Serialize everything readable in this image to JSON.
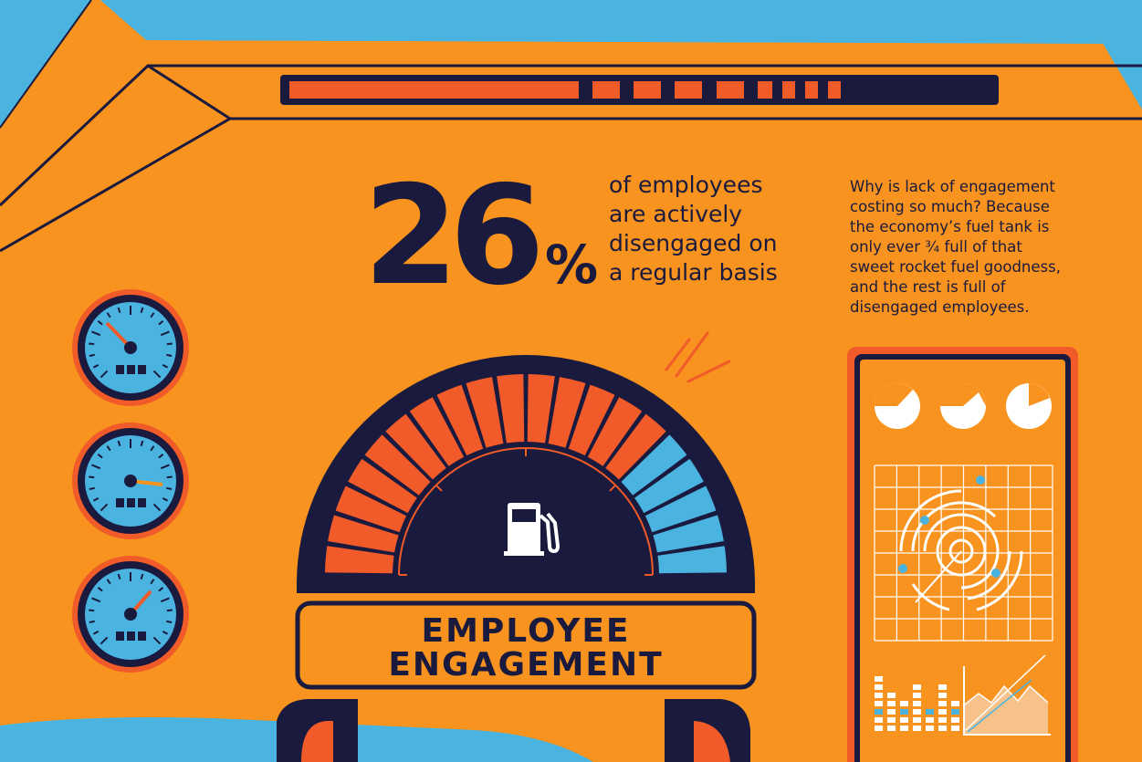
{
  "headline": {
    "number": "26",
    "unit": "%",
    "lines": [
      "of employees",
      "are actively",
      "disengaged on",
      "a regular basis"
    ]
  },
  "sidebar_text": {
    "lines": [
      "Why is lack of engagement",
      "costing so much? Because",
      "the economy’s fuel tank is",
      "only ever ¾ full of that",
      "sweet rocket fuel goodness,",
      "and the rest is full of",
      "disengaged employees."
    ]
  },
  "main_gauge": {
    "label_lines": [
      "EMPLOYEE",
      "ENGAGEMENT"
    ],
    "filled_fraction": 0.75,
    "icon": "fuel-pump-icon"
  },
  "small_gauges": [
    {
      "name": "gauge-top",
      "icon": "dial-icon"
    },
    {
      "name": "gauge-middle",
      "icon": "dial-icon"
    },
    {
      "name": "gauge-bottom",
      "icon": "dial-icon"
    }
  ],
  "colors": {
    "background": "#f7931e",
    "navy": "#1a1a3e",
    "red": "#f15a29",
    "blue": "#4ab3e0",
    "white": "#ffffff"
  }
}
